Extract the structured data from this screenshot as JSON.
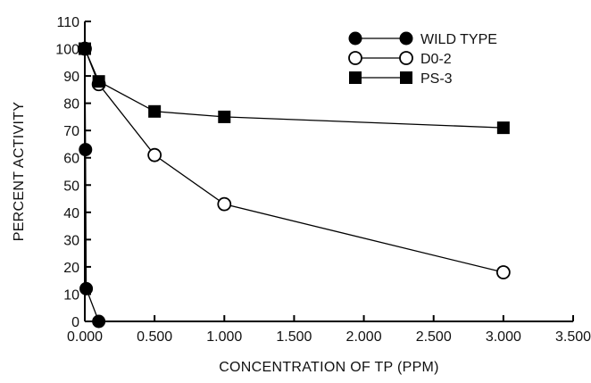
{
  "chart_data": {
    "type": "line",
    "xlabel": "CONCENTRATION OF TP (PPM)",
    "ylabel": "PERCENT ACTIVITY",
    "xlim": [
      0,
      3.5
    ],
    "ylim": [
      0,
      110
    ],
    "x_ticks": [
      "0.000",
      "0.500",
      "1.000",
      "1.500",
      "2.000",
      "2.500",
      "3.000",
      "3.500"
    ],
    "y_ticks": [
      "0",
      "10",
      "20",
      "30",
      "40",
      "50",
      "60",
      "70",
      "80",
      "90",
      "100",
      "110"
    ],
    "legend_position": "top-right",
    "grid": false,
    "series": [
      {
        "name": "WILD TYPE",
        "marker": "filled-circle",
        "x": [
          0,
          0.005,
          0.01,
          0.1
        ],
        "y": [
          100,
          63,
          12,
          0
        ]
      },
      {
        "name": "D0-2",
        "marker": "open-circle",
        "x": [
          0,
          0.1,
          0.5,
          1.0,
          3.0
        ],
        "y": [
          100,
          87,
          61,
          43,
          18
        ]
      },
      {
        "name": "PS-3",
        "marker": "filled-square",
        "x": [
          0,
          0.1,
          0.5,
          1.0,
          3.0
        ],
        "y": [
          100,
          88,
          77,
          75,
          71
        ]
      }
    ]
  }
}
